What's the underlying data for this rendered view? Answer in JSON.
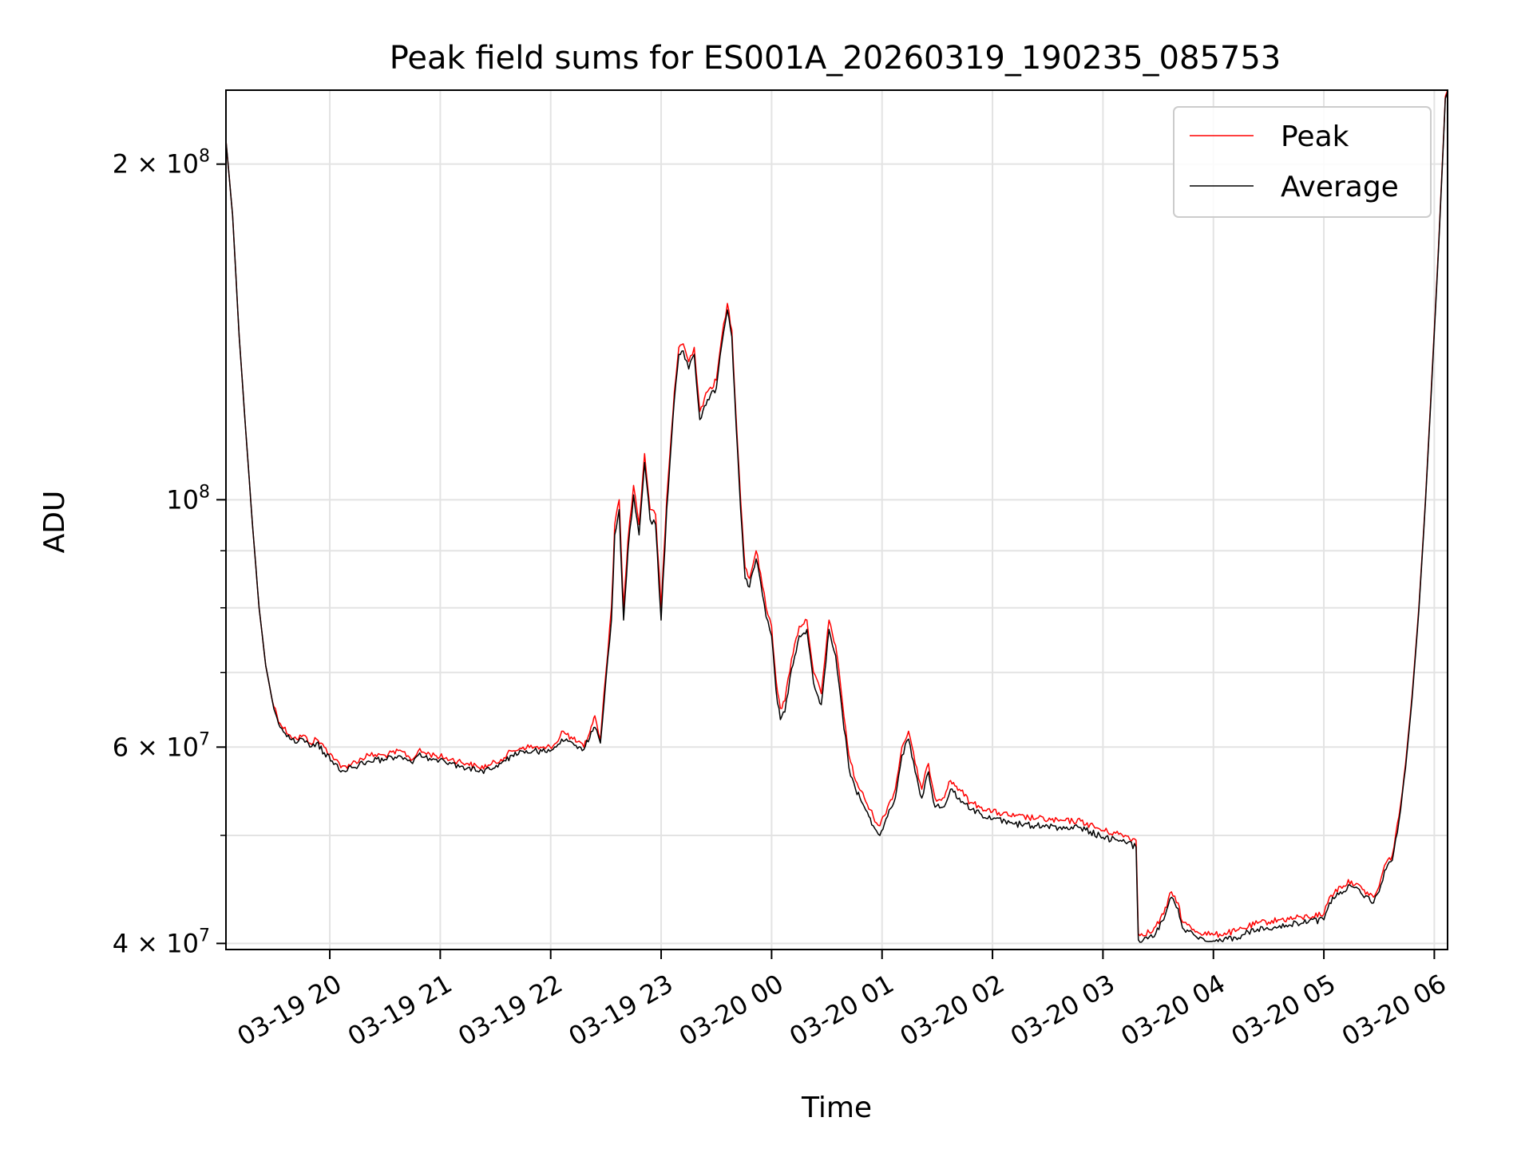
{
  "chart_data": {
    "type": "line",
    "title": "Peak field sums for ES001A_20260319_190235_085753",
    "xlabel": "Time",
    "ylabel": "ADU",
    "yscale": "log",
    "ylim": [
      39500000,
      233000000
    ],
    "xlim_hours": [
      -0.94,
      10.12
    ],
    "x_tick_labels": [
      "03-19 20",
      "03-19 21",
      "03-19 22",
      "03-19 23",
      "03-20 00",
      "03-20 01",
      "03-20 02",
      "03-20 03",
      "03-20 04",
      "03-20 05",
      "03-20 06"
    ],
    "y_ticks": [
      {
        "value": 40000000,
        "base": "4 × 10",
        "exp": "7"
      },
      {
        "value": 60000000,
        "base": "6 × 10",
        "exp": "7"
      },
      {
        "value": 100000000,
        "base": "10",
        "exp": "8"
      },
      {
        "value": 200000000,
        "base": "2 × 10",
        "exp": "8"
      }
    ],
    "y_minor_ticks": [
      50000000,
      70000000,
      80000000,
      90000000
    ],
    "grid": true,
    "legend_position": "top-right",
    "x_unit": "hours since 03-19 20:00",
    "series": [
      {
        "name": "Peak",
        "color": "#ff0000",
        "points": [
          [
            -0.94,
            210000000
          ],
          [
            -0.88,
            180000000
          ],
          [
            -0.82,
            140000000
          ],
          [
            -0.76,
            115000000
          ],
          [
            -0.7,
            95000000
          ],
          [
            -0.64,
            80000000
          ],
          [
            -0.58,
            71000000
          ],
          [
            -0.52,
            66000000
          ],
          [
            -0.45,
            63000000
          ],
          [
            -0.36,
            61500000
          ],
          [
            -0.3,
            61000000
          ],
          [
            -0.24,
            61500000
          ],
          [
            -0.18,
            60500000
          ],
          [
            -0.12,
            61000000
          ],
          [
            -0.05,
            60000000
          ],
          [
            0.05,
            58500000
          ],
          [
            0.1,
            57500000
          ],
          [
            0.2,
            58000000
          ],
          [
            0.35,
            59000000
          ],
          [
            0.5,
            59000000
          ],
          [
            0.65,
            59500000
          ],
          [
            0.75,
            58500000
          ],
          [
            0.8,
            59500000
          ],
          [
            0.95,
            59000000
          ],
          [
            1.1,
            58500000
          ],
          [
            1.25,
            58000000
          ],
          [
            1.35,
            57500000
          ],
          [
            1.45,
            57800000
          ],
          [
            1.55,
            58500000
          ],
          [
            1.65,
            59500000
          ],
          [
            1.75,
            60000000
          ],
          [
            1.85,
            60000000
          ],
          [
            1.95,
            59800000
          ],
          [
            2.05,
            60500000
          ],
          [
            2.1,
            62000000
          ],
          [
            2.2,
            61000000
          ],
          [
            2.3,
            60000000
          ],
          [
            2.38,
            63000000
          ],
          [
            2.4,
            64000000
          ],
          [
            2.45,
            61000000
          ],
          [
            2.5,
            70000000
          ],
          [
            2.55,
            80000000
          ],
          [
            2.58,
            95000000
          ],
          [
            2.62,
            100000000
          ],
          [
            2.66,
            80000000
          ],
          [
            2.7,
            92000000
          ],
          [
            2.75,
            103000000
          ],
          [
            2.8,
            95000000
          ],
          [
            2.85,
            110000000
          ],
          [
            2.9,
            98000000
          ],
          [
            2.95,
            97000000
          ],
          [
            3.0,
            80000000
          ],
          [
            3.05,
            100000000
          ],
          [
            3.08,
            110000000
          ],
          [
            3.12,
            125000000
          ],
          [
            3.16,
            137000000
          ],
          [
            3.2,
            138000000
          ],
          [
            3.25,
            133000000
          ],
          [
            3.3,
            137000000
          ],
          [
            3.35,
            120000000
          ],
          [
            3.42,
            125000000
          ],
          [
            3.5,
            128000000
          ],
          [
            3.55,
            140000000
          ],
          [
            3.6,
            150000000
          ],
          [
            3.64,
            142000000
          ],
          [
            3.68,
            118000000
          ],
          [
            3.72,
            100000000
          ],
          [
            3.76,
            87000000
          ],
          [
            3.8,
            85000000
          ],
          [
            3.86,
            90000000
          ],
          [
            3.9,
            86000000
          ],
          [
            3.95,
            80000000
          ],
          [
            4.0,
            77000000
          ],
          [
            4.04,
            69000000
          ],
          [
            4.08,
            65000000
          ],
          [
            4.12,
            66000000
          ],
          [
            4.18,
            72000000
          ],
          [
            4.25,
            77000000
          ],
          [
            4.32,
            78000000
          ],
          [
            4.38,
            70000000
          ],
          [
            4.45,
            67000000
          ],
          [
            4.52,
            78000000
          ],
          [
            4.58,
            74000000
          ],
          [
            4.64,
            66000000
          ],
          [
            4.7,
            59000000
          ],
          [
            4.76,
            56000000
          ],
          [
            4.84,
            54000000
          ],
          [
            4.92,
            52000000
          ],
          [
            4.98,
            51000000
          ],
          [
            5.05,
            53000000
          ],
          [
            5.12,
            55000000
          ],
          [
            5.18,
            60000000
          ],
          [
            5.24,
            62000000
          ],
          [
            5.3,
            58000000
          ],
          [
            5.36,
            55000000
          ],
          [
            5.42,
            58000000
          ],
          [
            5.48,
            54000000
          ],
          [
            5.55,
            54000000
          ],
          [
            5.62,
            56000000
          ],
          [
            5.7,
            55000000
          ],
          [
            5.8,
            53500000
          ],
          [
            5.9,
            53000000
          ],
          [
            6.0,
            52500000
          ],
          [
            6.2,
            52000000
          ],
          [
            6.4,
            51800000
          ],
          [
            6.6,
            51500000
          ],
          [
            6.8,
            51500000
          ],
          [
            7.0,
            50500000
          ],
          [
            7.2,
            50000000
          ],
          [
            7.3,
            49500000
          ],
          [
            7.32,
            40800000
          ],
          [
            7.45,
            41000000
          ],
          [
            7.55,
            42500000
          ],
          [
            7.62,
            44500000
          ],
          [
            7.68,
            43500000
          ],
          [
            7.72,
            41800000
          ],
          [
            7.85,
            41000000
          ],
          [
            8.0,
            40700000
          ],
          [
            8.2,
            41000000
          ],
          [
            8.4,
            41700000
          ],
          [
            8.6,
            42000000
          ],
          [
            8.8,
            42200000
          ],
          [
            9.0,
            42500000
          ],
          [
            9.05,
            44000000
          ],
          [
            9.15,
            45000000
          ],
          [
            9.25,
            45500000
          ],
          [
            9.35,
            44700000
          ],
          [
            9.45,
            44000000
          ],
          [
            9.5,
            45000000
          ],
          [
            9.55,
            47000000
          ],
          [
            9.62,
            48000000
          ],
          [
            9.68,
            52000000
          ],
          [
            9.74,
            58000000
          ],
          [
            9.8,
            67000000
          ],
          [
            9.86,
            80000000
          ],
          [
            9.92,
            100000000
          ],
          [
            9.98,
            130000000
          ],
          [
            10.04,
            170000000
          ],
          [
            10.1,
            230000000
          ],
          [
            10.12,
            233000000
          ]
        ]
      },
      {
        "name": "Average",
        "color": "#000000",
        "points": [
          [
            -0.94,
            210000000
          ],
          [
            -0.88,
            180000000
          ],
          [
            -0.82,
            140000000
          ],
          [
            -0.76,
            115000000
          ],
          [
            -0.7,
            95000000
          ],
          [
            -0.64,
            80000000
          ],
          [
            -0.58,
            71000000
          ],
          [
            -0.52,
            66000000
          ],
          [
            -0.45,
            62500000
          ],
          [
            -0.36,
            61000000
          ],
          [
            -0.3,
            60500000
          ],
          [
            -0.24,
            61000000
          ],
          [
            -0.18,
            60000000
          ],
          [
            -0.12,
            60500000
          ],
          [
            -0.05,
            59300000
          ],
          [
            0.05,
            58000000
          ],
          [
            0.1,
            57000000
          ],
          [
            0.2,
            57500000
          ],
          [
            0.35,
            58300000
          ],
          [
            0.5,
            58500000
          ],
          [
            0.65,
            58800000
          ],
          [
            0.75,
            58000000
          ],
          [
            0.8,
            59000000
          ],
          [
            0.95,
            58500000
          ],
          [
            1.1,
            58000000
          ],
          [
            1.25,
            57500000
          ],
          [
            1.35,
            57000000
          ],
          [
            1.45,
            57300000
          ],
          [
            1.55,
            58000000
          ],
          [
            1.65,
            59000000
          ],
          [
            1.75,
            59500000
          ],
          [
            1.85,
            59600000
          ],
          [
            1.95,
            59400000
          ],
          [
            2.05,
            60000000
          ],
          [
            2.1,
            61000000
          ],
          [
            2.2,
            60500000
          ],
          [
            2.3,
            59700000
          ],
          [
            2.38,
            62000000
          ],
          [
            2.4,
            62500000
          ],
          [
            2.45,
            60500000
          ],
          [
            2.5,
            69000000
          ],
          [
            2.55,
            78000000
          ],
          [
            2.58,
            93000000
          ],
          [
            2.62,
            98000000
          ],
          [
            2.66,
            78000000
          ],
          [
            2.7,
            90000000
          ],
          [
            2.75,
            101000000
          ],
          [
            2.8,
            93000000
          ],
          [
            2.85,
            108000000
          ],
          [
            2.9,
            96000000
          ],
          [
            2.95,
            95000000
          ],
          [
            3.0,
            78000000
          ],
          [
            3.05,
            98000000
          ],
          [
            3.08,
            108000000
          ],
          [
            3.12,
            123000000
          ],
          [
            3.16,
            135000000
          ],
          [
            3.2,
            136000000
          ],
          [
            3.25,
            131000000
          ],
          [
            3.3,
            135000000
          ],
          [
            3.35,
            118000000
          ],
          [
            3.42,
            123000000
          ],
          [
            3.5,
            126000000
          ],
          [
            3.55,
            138000000
          ],
          [
            3.6,
            148000000
          ],
          [
            3.64,
            140000000
          ],
          [
            3.68,
            116000000
          ],
          [
            3.72,
            98000000
          ],
          [
            3.76,
            85000000
          ],
          [
            3.8,
            83500000
          ],
          [
            3.86,
            88500000
          ],
          [
            3.9,
            84500000
          ],
          [
            3.95,
            78500000
          ],
          [
            4.0,
            75500000
          ],
          [
            4.04,
            67500000
          ],
          [
            4.08,
            63500000
          ],
          [
            4.12,
            64500000
          ],
          [
            4.18,
            70500000
          ],
          [
            4.25,
            75500000
          ],
          [
            4.32,
            76500000
          ],
          [
            4.38,
            68500000
          ],
          [
            4.45,
            65500000
          ],
          [
            4.52,
            76500000
          ],
          [
            4.58,
            72500000
          ],
          [
            4.64,
            64500000
          ],
          [
            4.7,
            57500000
          ],
          [
            4.76,
            55000000
          ],
          [
            4.84,
            53000000
          ],
          [
            4.92,
            51000000
          ],
          [
            4.98,
            50000000
          ],
          [
            5.05,
            52000000
          ],
          [
            5.12,
            54000000
          ],
          [
            5.18,
            59000000
          ],
          [
            5.24,
            61000000
          ],
          [
            5.3,
            57000000
          ],
          [
            5.36,
            54000000
          ],
          [
            5.42,
            57000000
          ],
          [
            5.48,
            53000000
          ],
          [
            5.55,
            53000000
          ],
          [
            5.62,
            55000000
          ],
          [
            5.7,
            54000000
          ],
          [
            5.8,
            52700000
          ],
          [
            5.9,
            52200000
          ],
          [
            6.0,
            51700000
          ],
          [
            6.2,
            51200000
          ],
          [
            6.4,
            51000000
          ],
          [
            6.6,
            50800000
          ],
          [
            6.8,
            50800000
          ],
          [
            7.0,
            49800000
          ],
          [
            7.2,
            49300000
          ],
          [
            7.3,
            48800000
          ],
          [
            7.32,
            40300000
          ],
          [
            7.45,
            40500000
          ],
          [
            7.55,
            42000000
          ],
          [
            7.62,
            44000000
          ],
          [
            7.68,
            43000000
          ],
          [
            7.72,
            41300000
          ],
          [
            7.85,
            40500000
          ],
          [
            8.0,
            40200000
          ],
          [
            8.2,
            40500000
          ],
          [
            8.4,
            41200000
          ],
          [
            8.6,
            41500000
          ],
          [
            8.8,
            41700000
          ],
          [
            9.0,
            42000000
          ],
          [
            9.05,
            43500000
          ],
          [
            9.15,
            44500000
          ],
          [
            9.25,
            45000000
          ],
          [
            9.35,
            44200000
          ],
          [
            9.45,
            43500000
          ],
          [
            9.5,
            44500000
          ],
          [
            9.55,
            46500000
          ],
          [
            9.62,
            47500000
          ],
          [
            9.68,
            51500000
          ],
          [
            9.74,
            57500000
          ],
          [
            9.8,
            66500000
          ],
          [
            9.86,
            79500000
          ],
          [
            9.92,
            99500000
          ],
          [
            9.98,
            129000000
          ],
          [
            10.04,
            169000000
          ],
          [
            10.1,
            229000000
          ],
          [
            10.12,
            232000000
          ]
        ]
      }
    ]
  }
}
